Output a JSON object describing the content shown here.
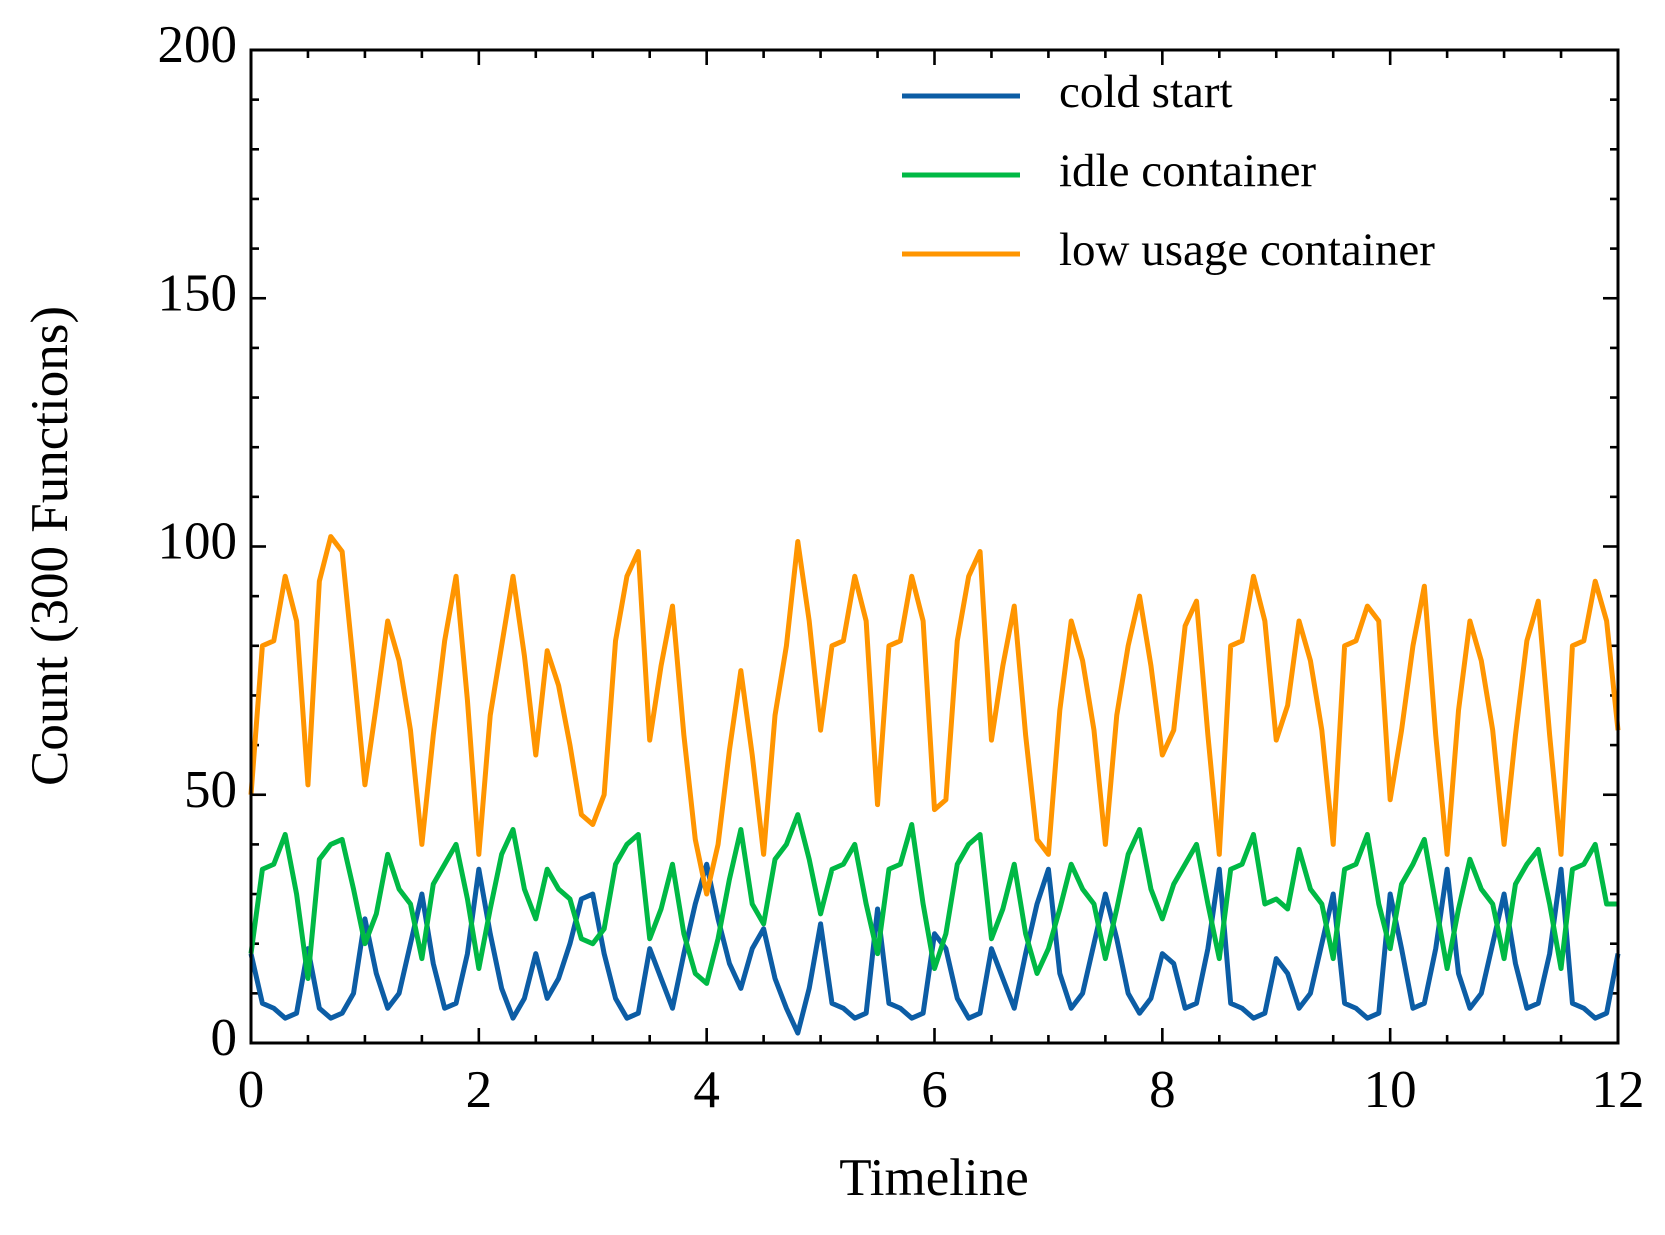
{
  "chart_data": {
    "type": "line",
    "xlabel": "Timeline",
    "ylabel": "Count (300 Functions)",
    "x": [
      0,
      0.1,
      0.2,
      0.3,
      0.4,
      0.5,
      0.6,
      0.7,
      0.8,
      0.9,
      1,
      1.1,
      1.2,
      1.3,
      1.4,
      1.5,
      1.6,
      1.7,
      1.8,
      1.9,
      2,
      2.1,
      2.2,
      2.3,
      2.4,
      2.5,
      2.6,
      2.7,
      2.8,
      2.9,
      3,
      3.1,
      3.2,
      3.3,
      3.4,
      3.5,
      3.6,
      3.7,
      3.8,
      3.9,
      4,
      4.1,
      4.2,
      4.3,
      4.4,
      4.5,
      4.6,
      4.7,
      4.8,
      4.9,
      5,
      5.1,
      5.2,
      5.3,
      5.4,
      5.5,
      5.6,
      5.7,
      5.8,
      5.9,
      6,
      6.1,
      6.2,
      6.3,
      6.4,
      6.5,
      6.6,
      6.7,
      6.8,
      6.9,
      7,
      7.1,
      7.2,
      7.3,
      7.4,
      7.5,
      7.6,
      7.7,
      7.8,
      7.9,
      8,
      8.1,
      8.2,
      8.3,
      8.4,
      8.5,
      8.6,
      8.7,
      8.8,
      8.9,
      9,
      9.1,
      9.2,
      9.3,
      9.4,
      9.5,
      9.6,
      9.7,
      9.8,
      9.9,
      10,
      10.1,
      10.2,
      10.3,
      10.4,
      10.5,
      10.6,
      10.7,
      10.8,
      10.9,
      11,
      11.1,
      11.2,
      11.3,
      11.4,
      11.5,
      11.6,
      11.7,
      11.8,
      11.9,
      12
    ],
    "series": [
      {
        "name": "cold start",
        "color": "#0C5DA5",
        "values": [
          18,
          8,
          7,
          5,
          6,
          19,
          7,
          5,
          6,
          10,
          25,
          14,
          7,
          10,
          20,
          30,
          16,
          7,
          8,
          18,
          35,
          22,
          11,
          5,
          9,
          18,
          9,
          13,
          20,
          29,
          30,
          18,
          9,
          5,
          6,
          19,
          13,
          7,
          18,
          28,
          36,
          25,
          16,
          11,
          19,
          23,
          13,
          7,
          2,
          11,
          24,
          8,
          7,
          5,
          6,
          27,
          8,
          7,
          5,
          6,
          22,
          19,
          9,
          5,
          6,
          19,
          13,
          7,
          18,
          28,
          35,
          14,
          7,
          10,
          20,
          30,
          21,
          10,
          6,
          9,
          18,
          16,
          7,
          8,
          19,
          35,
          8,
          7,
          5,
          6,
          17,
          14,
          7,
          10,
          20,
          30,
          8,
          7,
          5,
          6,
          30,
          19,
          7,
          8,
          19,
          35,
          14,
          7,
          10,
          20,
          30,
          16,
          7,
          8,
          18,
          35,
          8,
          7,
          5,
          6,
          18
        ]
      },
      {
        "name": "idle container",
        "color": "#00B945",
        "values": [
          18,
          35,
          36,
          42,
          30,
          13,
          37,
          40,
          41,
          31,
          20,
          26,
          38,
          31,
          28,
          17,
          32,
          36,
          40,
          29,
          15,
          27,
          38,
          43,
          31,
          25,
          35,
          31,
          29,
          21,
          20,
          23,
          36,
          40,
          42,
          21,
          27,
          36,
          22,
          14,
          12,
          21,
          33,
          43,
          28,
          24,
          37,
          40,
          46,
          37,
          26,
          35,
          36,
          40,
          28,
          18,
          35,
          36,
          44,
          28,
          15,
          22,
          36,
          40,
          42,
          21,
          27,
          36,
          22,
          14,
          19,
          27,
          36,
          31,
          28,
          17,
          27,
          38,
          43,
          31,
          25,
          32,
          36,
          40,
          28,
          17,
          35,
          36,
          42,
          28,
          29,
          27,
          39,
          31,
          28,
          17,
          35,
          36,
          42,
          28,
          19,
          32,
          36,
          41,
          28,
          15,
          27,
          37,
          31,
          28,
          17,
          32,
          36,
          39,
          28,
          15,
          35,
          36,
          40,
          28,
          28
        ]
      },
      {
        "name": "low usage container",
        "color": "#FF9500",
        "values": [
          50,
          80,
          81,
          94,
          85,
          52,
          93,
          102,
          99,
          76,
          52,
          68,
          85,
          77,
          63,
          40,
          62,
          81,
          94,
          69,
          38,
          66,
          80,
          94,
          78,
          58,
          79,
          72,
          60,
          46,
          44,
          50,
          81,
          94,
          99,
          61,
          76,
          88,
          62,
          41,
          30,
          40,
          59,
          75,
          58,
          38,
          66,
          80,
          101,
          85,
          63,
          80,
          81,
          94,
          85,
          48,
          80,
          81,
          94,
          85,
          47,
          49,
          81,
          94,
          99,
          61,
          76,
          88,
          62,
          41,
          38,
          67,
          85,
          77,
          63,
          40,
          66,
          80,
          90,
          76,
          58,
          63,
          84,
          89,
          62,
          38,
          80,
          81,
          94,
          85,
          61,
          68,
          85,
          77,
          63,
          40,
          80,
          81,
          88,
          85,
          49,
          63,
          80,
          92,
          62,
          38,
          67,
          85,
          77,
          63,
          40,
          62,
          81,
          89,
          62,
          38,
          80,
          81,
          93,
          85,
          63
        ]
      }
    ],
    "xlim": [
      0,
      12
    ],
    "xticks": [
      0,
      2,
      4,
      6,
      8,
      10,
      12
    ],
    "ylim": [
      0,
      200
    ],
    "yticks": [
      0,
      50,
      100,
      150,
      200
    ],
    "minor_ticks": true,
    "grid": false,
    "legend": "upper right"
  }
}
